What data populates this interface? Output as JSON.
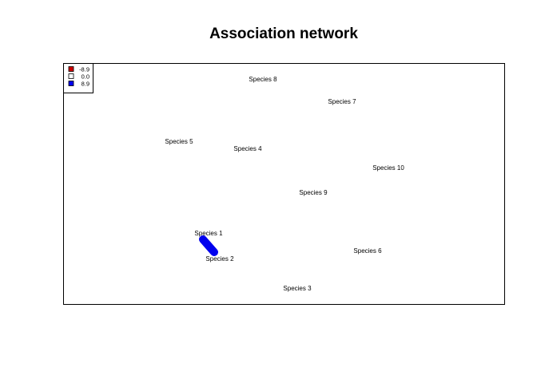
{
  "title": "Association network",
  "colors": {
    "negative": "#cc0000",
    "zero": "#ffffff",
    "positive": "#0000ee",
    "frame": "#000000"
  },
  "legend": {
    "placement": "top-left",
    "entries": [
      {
        "label": "-8.9",
        "value": -8.9,
        "color": "#cc0000"
      },
      {
        "label": "0.0",
        "value": 0.0,
        "color": "#ffffff"
      },
      {
        "label": "8.9",
        "value": 8.9,
        "color": "#0000ee"
      }
    ]
  },
  "network": {
    "nodes": [
      {
        "id": "s1",
        "label": "Species 1"
      },
      {
        "id": "s2",
        "label": "Species 2"
      },
      {
        "id": "s3",
        "label": "Species 3"
      },
      {
        "id": "s4",
        "label": "Species 4"
      },
      {
        "id": "s5",
        "label": "Species 5"
      },
      {
        "id": "s6",
        "label": "Species 6"
      },
      {
        "id": "s7",
        "label": "Species 7"
      },
      {
        "id": "s8",
        "label": "Species 8"
      },
      {
        "id": "s9",
        "label": "Species 9"
      },
      {
        "id": "s10",
        "label": "Species 10"
      }
    ],
    "edges": [
      {
        "source": "s1",
        "target": "s2",
        "weight": 8.9,
        "color": "#0000ee"
      }
    ]
  }
}
